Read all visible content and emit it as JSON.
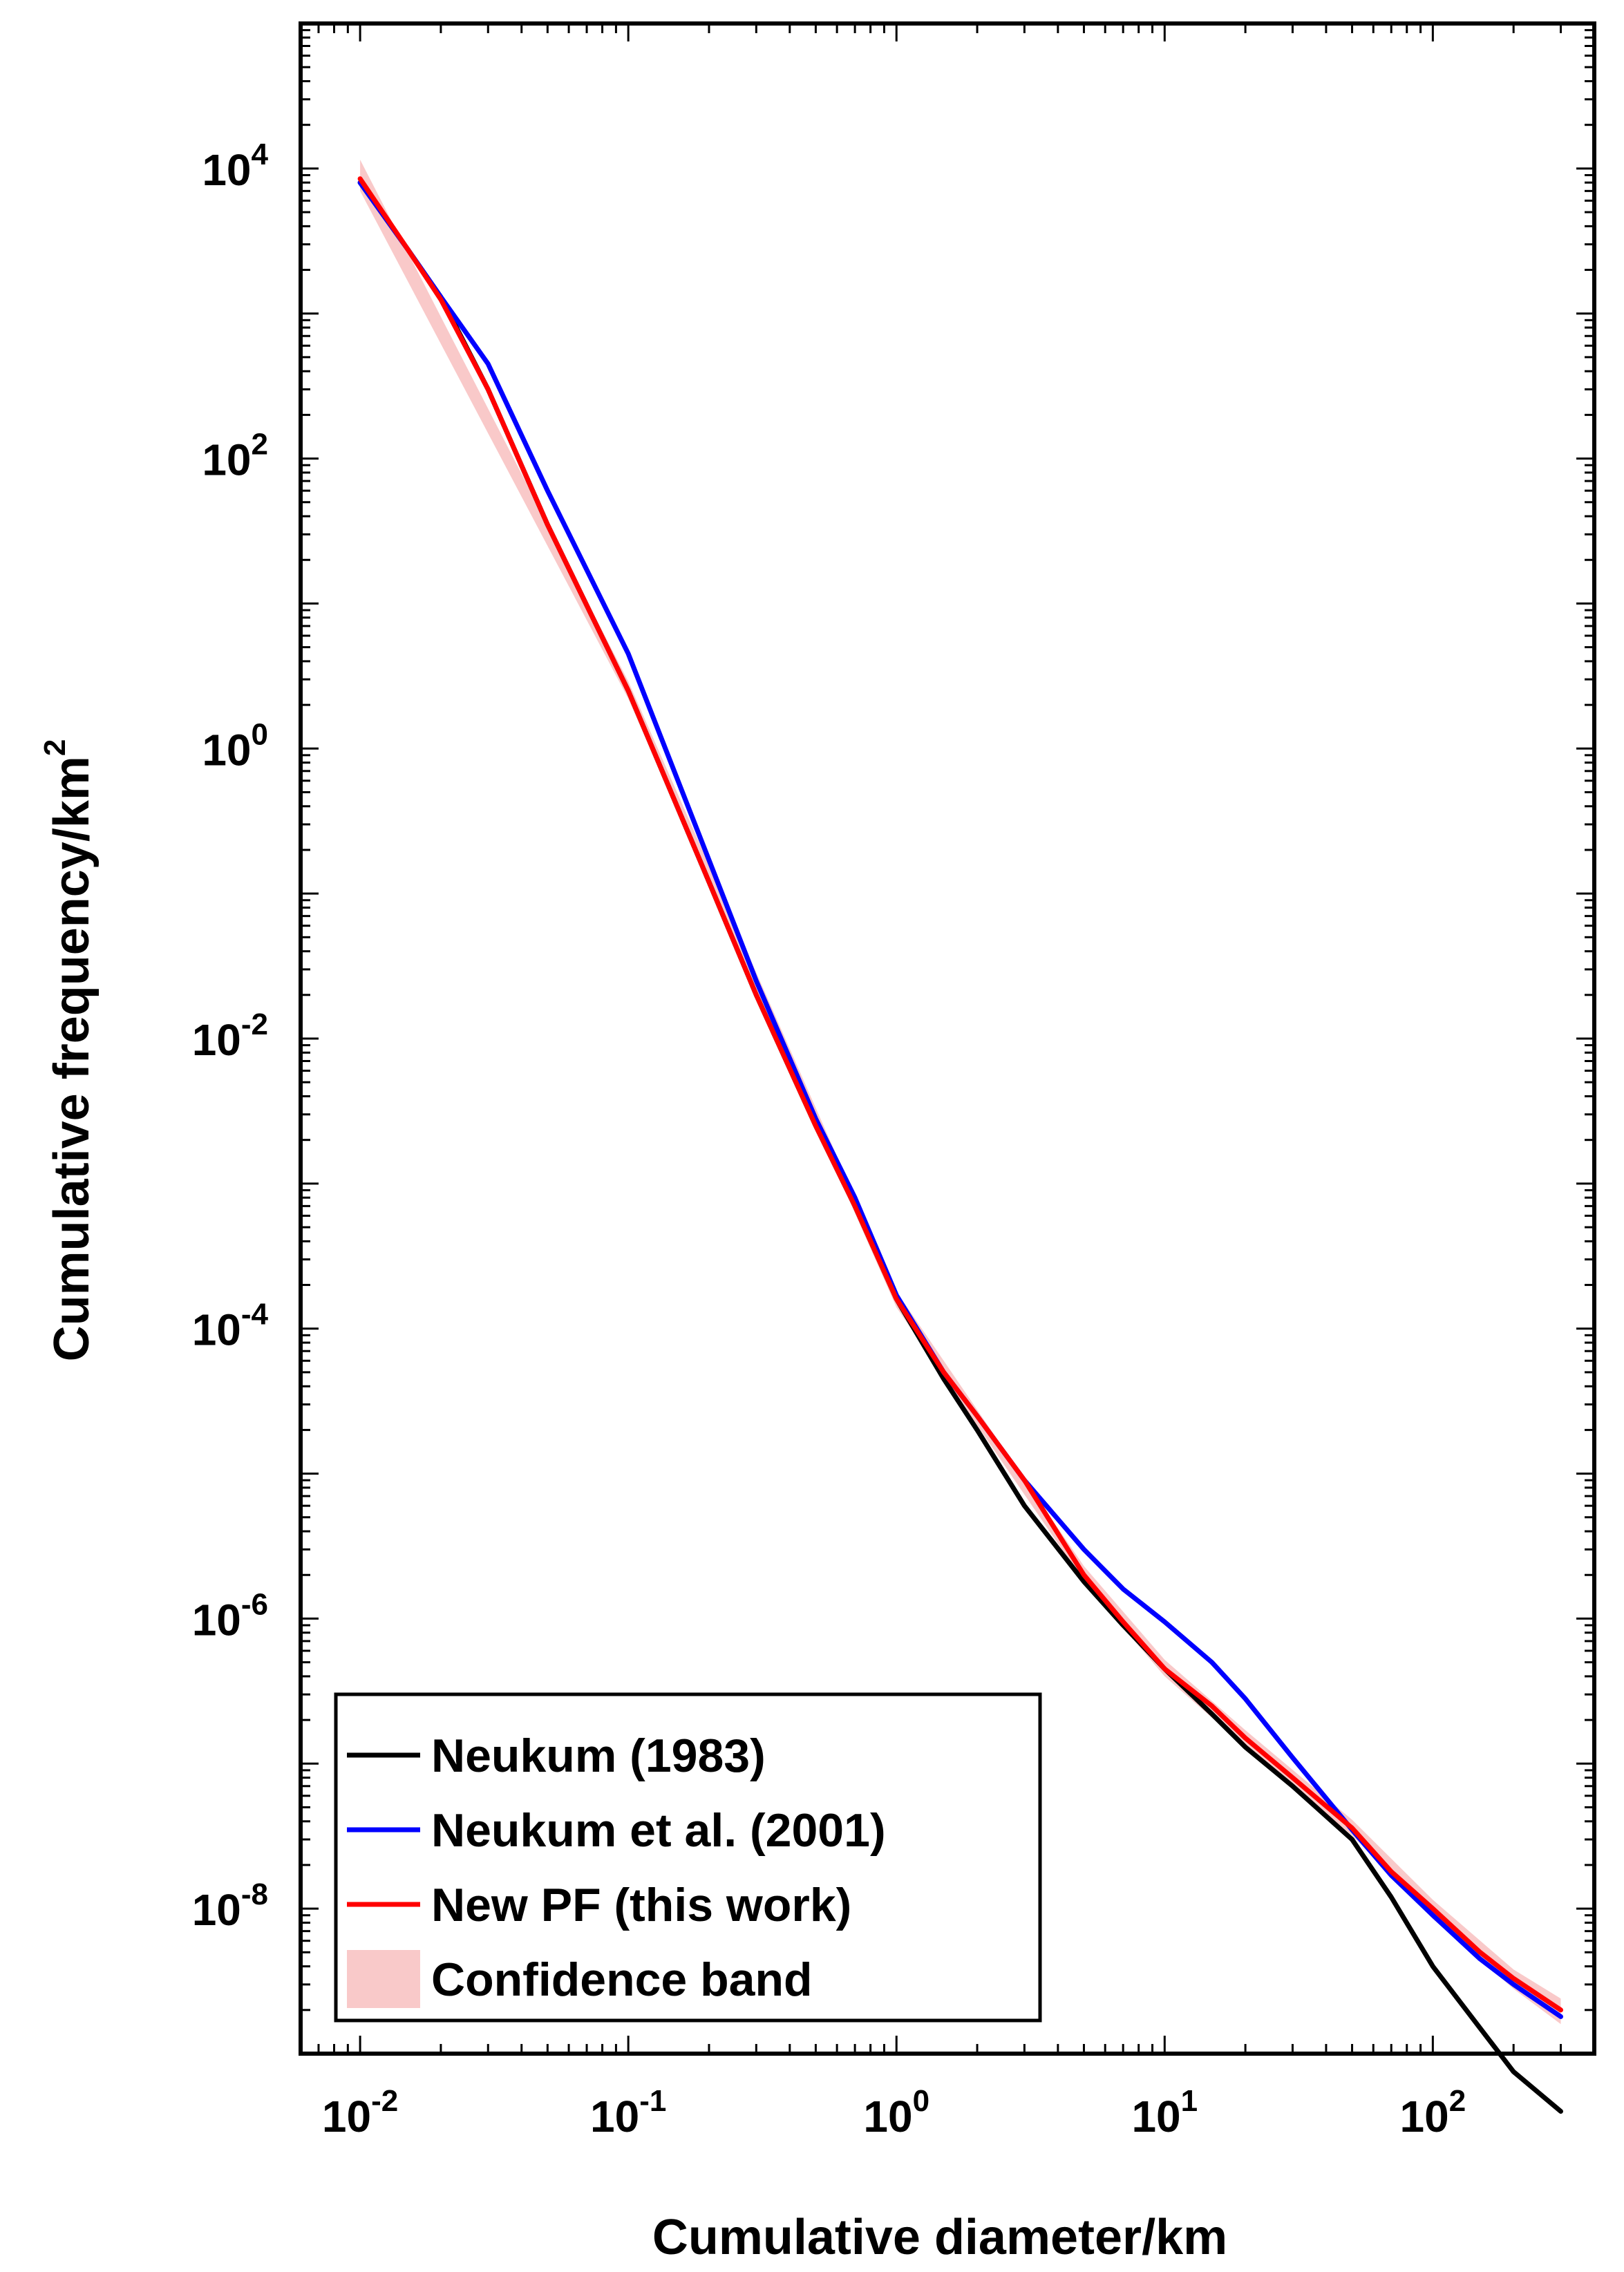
{
  "chart_data": {
    "type": "line",
    "title": "",
    "xlabel": "Cumulative diameter/km",
    "ylabel": "Cumulative frequency/km",
    "ylabel_superscript": "2",
    "xscale": "log",
    "yscale": "log",
    "xlim": [
      0.006,
      400
    ],
    "ylim": [
      1e-09,
      100000.0
    ],
    "x_ticks": [
      {
        "base": "10",
        "exp": "-2",
        "value": 0.01
      },
      {
        "base": "10",
        "exp": "-1",
        "value": 0.1
      },
      {
        "base": "10",
        "exp": "0",
        "value": 1
      },
      {
        "base": "10",
        "exp": "1",
        "value": 10
      },
      {
        "base": "10",
        "exp": "2",
        "value": 100
      }
    ],
    "y_ticks": [
      {
        "base": "10",
        "exp": "4",
        "value": 10000.0
      },
      {
        "base": "10",
        "exp": "2",
        "value": 100.0
      },
      {
        "base": "10",
        "exp": "0",
        "value": 1
      },
      {
        "base": "10",
        "exp": "-2",
        "value": 0.01
      },
      {
        "base": "10",
        "exp": "-4",
        "value": 0.0001
      },
      {
        "base": "10",
        "exp": "-6",
        "value": 1e-06
      },
      {
        "base": "10",
        "exp": "-8",
        "value": 1e-08
      }
    ],
    "legend_position": "bottom-left",
    "legend": [
      {
        "label": "Neukum (1983)",
        "color": "#000000",
        "kind": "line"
      },
      {
        "label": "Neukum et al. (2001)",
        "color": "#0000ff",
        "kind": "line"
      },
      {
        "label": "New PF (this work)",
        "color": "#ff0000",
        "kind": "line"
      },
      {
        "label": "Confidence band",
        "color": "#f9c9c9",
        "kind": "patch"
      }
    ],
    "series": [
      {
        "name": "Neukum (1983)",
        "color": "#000000",
        "x": [
          0.01,
          0.015,
          0.02,
          0.03,
          0.05,
          0.1,
          0.2,
          0.3,
          0.5,
          0.7,
          1.0,
          1.5,
          2.0,
          3.0,
          5.0,
          7.0,
          10,
          15,
          20,
          30,
          50,
          70,
          100,
          150,
          200,
          300
        ],
        "y": [
          8000,
          2800,
          1300,
          300,
          35,
          2.5,
          0.12,
          0.02,
          0.0025,
          0.0007,
          0.00016,
          4.5e-05,
          2e-05,
          6e-06,
          1.8e-06,
          9e-07,
          4.5e-07,
          2.2e-07,
          1.3e-07,
          7e-08,
          3e-08,
          1.2e-08,
          4e-09,
          1.5e-09,
          7.5e-10,
          4e-10
        ]
      },
      {
        "name": "Neukum et al. (2001)",
        "color": "#0000ff",
        "x": [
          0.01,
          0.015,
          0.02,
          0.03,
          0.05,
          0.1,
          0.2,
          0.3,
          0.5,
          0.7,
          1.0,
          1.5,
          2.0,
          3.0,
          5.0,
          7.0,
          10,
          15,
          20,
          30,
          50,
          70,
          100,
          150,
          200,
          300
        ],
        "y": [
          8000,
          2800,
          1300,
          450,
          60,
          4.5,
          0.17,
          0.025,
          0.0028,
          0.0008,
          0.00017,
          5e-05,
          2.5e-05,
          9e-06,
          3e-06,
          1.6e-06,
          9.5e-07,
          5e-07,
          2.8e-07,
          1.1e-07,
          3.5e-08,
          1.7e-08,
          9e-09,
          4.5e-09,
          3e-09,
          1.8e-09
        ]
      },
      {
        "name": "New PF (this work)",
        "color": "#ff0000",
        "x": [
          0.01,
          0.015,
          0.02,
          0.03,
          0.05,
          0.1,
          0.2,
          0.3,
          0.5,
          0.7,
          1.0,
          1.5,
          2.0,
          3.0,
          5.0,
          7.0,
          10,
          15,
          20,
          30,
          50,
          70,
          100,
          150,
          200,
          300
        ],
        "y": [
          8500,
          2800,
          1250,
          300,
          35,
          2.5,
          0.12,
          0.02,
          0.0025,
          0.0007,
          0.00016,
          5e-05,
          2.5e-05,
          9e-06,
          2e-06,
          9.5e-07,
          4.5e-07,
          2.5e-07,
          1.5e-07,
          8e-08,
          3.6e-08,
          1.8e-08,
          1e-08,
          5e-09,
          3.3e-09,
          2e-09
        ]
      }
    ],
    "confidence_band": {
      "name": "Confidence band",
      "color": "#f9c9c9",
      "x": [
        0.01,
        0.1,
        1.0,
        5.0,
        10,
        20,
        50,
        100,
        200,
        300
      ],
      "y_low": [
        7000,
        2.2,
        0.00014,
        1.8e-06,
        4e-07,
        1.3e-07,
        3.2e-08,
        8.5e-09,
        2.8e-09,
        1.6e-09
      ],
      "y_high": [
        11500,
        2.9,
        0.00018,
        2.3e-06,
        5.2e-07,
        1.7e-07,
        4.1e-08,
        1.15e-08,
        3.8e-09,
        2.4e-09
      ]
    }
  }
}
